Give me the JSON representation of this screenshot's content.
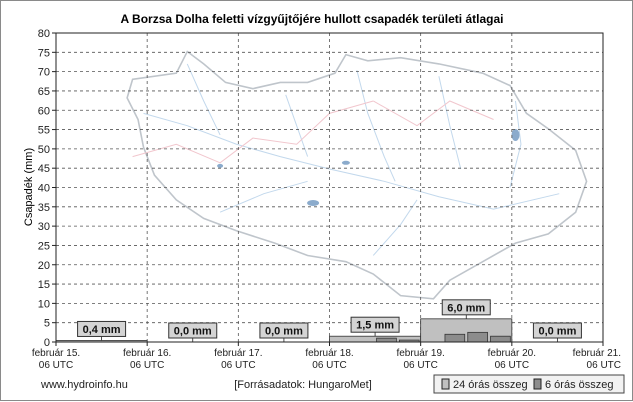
{
  "chart_data": {
    "type": "bar",
    "title": "A Borzsa Dolha feletti vízgyűjtőjére hullott csapadék területi átlagai",
    "xlabel": "",
    "ylabel": "Csapadék (mm)",
    "ylim": [
      0,
      80
    ],
    "yticks": [
      0,
      5,
      10,
      15,
      20,
      25,
      30,
      35,
      40,
      45,
      50,
      55,
      60,
      65,
      70,
      75,
      80
    ],
    "grid": true,
    "x_ticks": [
      {
        "line1": "február 15.",
        "line2": "06 UTC"
      },
      {
        "line1": "február 16.",
        "line2": "06 UTC"
      },
      {
        "line1": "február 17.",
        "line2": "06 UTC"
      },
      {
        "line1": "február 18.",
        "line2": "06 UTC"
      },
      {
        "line1": "február 19.",
        "line2": "06 UTC"
      },
      {
        "line1": "február 20.",
        "line2": "06 UTC"
      },
      {
        "line1": "február 21.",
        "line2": "06 UTC"
      }
    ],
    "series": [
      {
        "name": "24 órás összeg",
        "values": [
          0.4,
          0.0,
          0.0,
          1.5,
          6.0,
          0.0
        ],
        "labels": [
          "0,4 mm",
          "0,0 mm",
          "0,0 mm",
          "1,5 mm",
          "6,0 mm",
          "0,0 mm"
        ]
      },
      {
        "name": "6 órás összeg",
        "values": [
          0.0,
          0.0,
          0.0,
          0.0,
          0.0,
          0.0,
          0.0,
          0.0,
          0.0,
          0.0,
          0.0,
          0.0,
          0.0,
          0.0,
          1.0,
          0.5,
          0.0,
          2.0,
          2.5,
          1.5,
          0.0,
          0.0,
          0.0,
          0.0
        ]
      }
    ],
    "legend_position": "bottom-right"
  },
  "footer": {
    "website": "www.hydroinfo.hu",
    "source": "[Forrásadatok: HungaroMet]"
  },
  "colors": {
    "bar_24h": "#c0c0c0",
    "bar_6h": "#8c8c8c",
    "label_box": "#d4d4d4",
    "grid": "#555555",
    "map_outline": "#b9bfc6",
    "map_river": "#bcd4ea",
    "map_border": "#f0c0c8",
    "lake": "#7fa3c7"
  }
}
